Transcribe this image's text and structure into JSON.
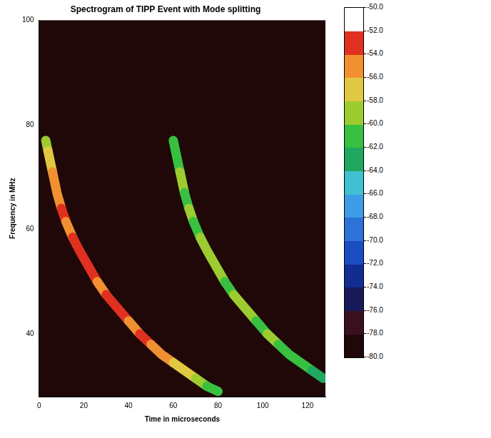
{
  "chart_data": {
    "type": "spectrogram",
    "title": "Spectrogram of TIPP Event with Mode splitting",
    "x_label": "Time in microseconds",
    "y_label": "Frequency in MHz",
    "xlim": [
      0,
      128
    ],
    "xticks": [
      0,
      20,
      40,
      60,
      80,
      100,
      120
    ],
    "ylim": [
      28,
      100
    ],
    "yticks": [
      40,
      60,
      80,
      100
    ],
    "grid": false,
    "series": [
      {
        "x": [
          3,
          4,
          6,
          8,
          10,
          12,
          15,
          18,
          22,
          26,
          30,
          35,
          40,
          45,
          50,
          55,
          60,
          65,
          70,
          75,
          80
        ],
        "values": [
          77,
          75,
          71,
          67,
          64,
          61.5,
          58.5,
          56,
          53,
          50,
          47.5,
          45,
          42.5,
          40,
          38,
          36,
          34.5,
          33,
          31.5,
          30,
          29
        ],
        "intensity": [
          -60,
          -58,
          -56,
          -55,
          -54,
          -55,
          -54,
          -53,
          -54,
          -55,
          -54,
          -53,
          -55,
          -54,
          -55,
          -56,
          -57,
          -58,
          -59,
          -61,
          -63
        ]
      },
      {
        "x": [
          60,
          61,
          63,
          65,
          67,
          69,
          72,
          75,
          79,
          83,
          87,
          92,
          97,
          102,
          107,
          112,
          117,
          122,
          127
        ],
        "values": [
          77,
          75,
          71,
          67,
          64,
          61.5,
          58.5,
          56,
          53,
          50,
          47.5,
          45,
          42.5,
          40,
          38,
          36,
          34.5,
          33,
          31.5
        ],
        "intensity": [
          -62,
          -61,
          -60,
          -61,
          -60,
          -61,
          -60,
          -59,
          -60,
          -61,
          -60,
          -60,
          -61,
          -60,
          -61,
          -62,
          -62,
          -63,
          -64
        ]
      }
    ],
    "colorbar": {
      "range": [
        -80,
        -50
      ],
      "ticks": [
        {
          "value": -50,
          "label": "-50.0"
        },
        {
          "value": -52,
          "label": "-52.0"
        },
        {
          "value": -54,
          "label": "-54.0"
        },
        {
          "value": -56,
          "label": "-56.0"
        },
        {
          "value": -58,
          "label": "-58.0"
        },
        {
          "value": -60,
          "label": "-60.0"
        },
        {
          "value": -62,
          "label": "-62.0"
        },
        {
          "value": -64,
          "label": "-64.0"
        },
        {
          "value": -66,
          "label": "-66.0"
        },
        {
          "value": -68,
          "label": "-68.0"
        },
        {
          "value": -70,
          "label": "-70.0"
        },
        {
          "value": -72,
          "label": "-72.0"
        },
        {
          "value": -74,
          "label": "-74.0"
        },
        {
          "value": -76,
          "label": "-76.0"
        },
        {
          "value": -78,
          "label": "-78.0"
        },
        {
          "value": -80,
          "label": "-80.0"
        }
      ]
    }
  }
}
